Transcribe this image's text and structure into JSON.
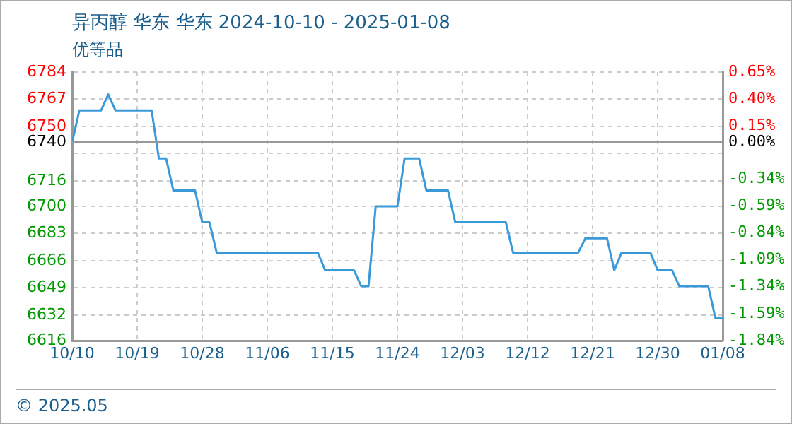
{
  "chart_data": {
    "type": "line",
    "title": "异丙醇 华东 华东 2024-10-10 - 2025-01-08",
    "subtitle": "优等品",
    "x": [
      "2024-10-10",
      "2024-10-11",
      "2024-10-14",
      "2024-10-15",
      "2024-10-16",
      "2024-10-21",
      "2024-10-22",
      "2024-10-23",
      "2024-10-24",
      "2024-10-27",
      "2024-10-28",
      "2024-10-29",
      "2024-10-30",
      "2024-11-13",
      "2024-11-14",
      "2024-11-18",
      "2024-11-19",
      "2024-11-20",
      "2024-11-21",
      "2024-11-24",
      "2024-11-25",
      "2024-11-27",
      "2024-11-28",
      "2024-12-01",
      "2024-12-02",
      "2024-12-09",
      "2024-12-10",
      "2024-12-19",
      "2024-12-20",
      "2024-12-23",
      "2024-12-24",
      "2024-12-25",
      "2024-12-29",
      "2024-12-30",
      "2025-01-01",
      "2025-01-02",
      "2025-01-06",
      "2025-01-07",
      "2025-01-08"
    ],
    "series": [
      {
        "color": "#3a9ad9",
        "values": [
          6740,
          6760,
          6760,
          6770,
          6760,
          6760,
          6730,
          6730,
          6710,
          6710,
          6690,
          6690,
          6671,
          6671,
          6660,
          6660,
          6650,
          6650,
          6700,
          6700,
          6730,
          6730,
          6710,
          6710,
          6690,
          6690,
          6671,
          6671,
          6680,
          6680,
          6660,
          6671,
          6671,
          6660,
          6660,
          6650,
          6650,
          6630,
          6630
        ]
      }
    ],
    "xlim": [
      "2024-10-10",
      "2025-01-08"
    ],
    "xticks": [
      {
        "value": "2024-10-10",
        "label": "10/10"
      },
      {
        "value": "2024-10-19",
        "label": "10/19"
      },
      {
        "value": "2024-10-28",
        "label": "10/28"
      },
      {
        "value": "2024-11-06",
        "label": "11/06"
      },
      {
        "value": "2024-11-15",
        "label": "11/15"
      },
      {
        "value": "2024-11-24",
        "label": "11/24"
      },
      {
        "value": "2024-12-03",
        "label": "12/03"
      },
      {
        "value": "2024-12-12",
        "label": "12/12"
      },
      {
        "value": "2024-12-21",
        "label": "12/21"
      },
      {
        "value": "2024-12-30",
        "label": "12/30"
      },
      {
        "value": "2025-01-08",
        "label": "01/08"
      }
    ],
    "ylim": [
      6616,
      6784
    ],
    "yticks": [
      6616,
      6632,
      6649,
      6666,
      6683,
      6700,
      6716,
      {
        "value": 6733,
        "label": null
      },
      6740,
      6750,
      6767,
      6784
    ],
    "y2lim": [
      -1.84,
      0.65
    ],
    "y2ticks": [
      {
        "value": -1.84,
        "label": "-1.84%"
      },
      {
        "value": -1.59,
        "label": "-1.59%"
      },
      {
        "value": -1.34,
        "label": "-1.34%"
      },
      {
        "value": -1.09,
        "label": "-1.09%"
      },
      {
        "value": -0.84,
        "label": "-0.84%"
      },
      {
        "value": -0.59,
        "label": "-0.59%"
      },
      {
        "value": -0.34,
        "label": "-0.34%"
      },
      {
        "value": -0.1,
        "label": null
      },
      {
        "value": 0,
        "label": "0.00%"
      },
      {
        "value": 0.15,
        "label": "0.15%"
      },
      {
        "value": 0.4,
        "label": "0.40%"
      },
      {
        "value": 0.65,
        "label": "0.65%"
      }
    ],
    "ref_lines": [
      {
        "axis": "y",
        "value": 6740,
        "color": "#999999"
      }
    ],
    "annotations": [
      "© 2025.05"
    ],
    "grid": true,
    "legend": false,
    "marker": "none",
    "line_style": "solid"
  }
}
